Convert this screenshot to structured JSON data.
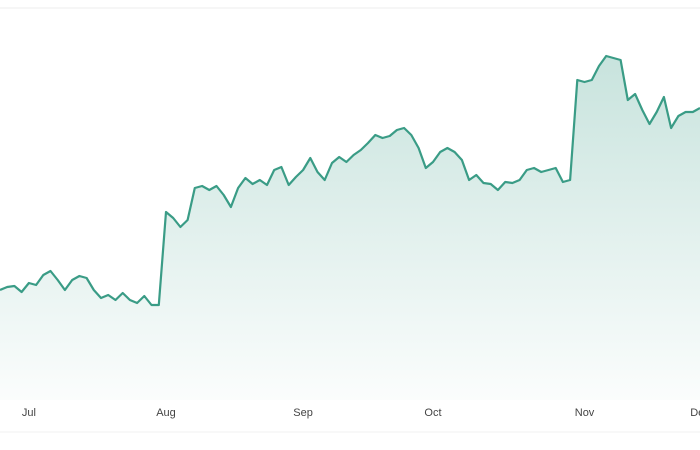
{
  "chart_data": {
    "type": "area",
    "categories": [
      null,
      null,
      null,
      null,
      "Jul",
      null,
      null,
      null,
      null,
      null,
      null,
      null,
      null,
      null,
      null,
      null,
      null,
      null,
      null,
      null,
      null,
      null,
      null,
      "Aug",
      null,
      null,
      null,
      null,
      null,
      null,
      null,
      null,
      null,
      null,
      null,
      null,
      null,
      null,
      null,
      null,
      null,
      null,
      "Sep",
      null,
      null,
      null,
      null,
      null,
      null,
      null,
      null,
      null,
      null,
      null,
      null,
      null,
      null,
      null,
      null,
      null,
      "Oct",
      null,
      null,
      null,
      null,
      null,
      null,
      null,
      null,
      null,
      null,
      null,
      null,
      null,
      null,
      null,
      null,
      null,
      null,
      null,
      null,
      "Nov",
      null,
      null,
      null,
      null,
      null,
      null,
      null,
      null,
      null,
      null,
      null,
      null,
      null,
      null,
      null,
      "Dec"
    ],
    "values": [
      110,
      113,
      114,
      108,
      117,
      115,
      125,
      129,
      120,
      110,
      120,
      124,
      122,
      110,
      102,
      105,
      100,
      107,
      100,
      97,
      104,
      95,
      95,
      188,
      182,
      173,
      180,
      212,
      214,
      210,
      214,
      205,
      193,
      212,
      222,
      216,
      220,
      215,
      230,
      233,
      215,
      223,
      230,
      242,
      228,
      220,
      237,
      243,
      238,
      245,
      250,
      257,
      265,
      262,
      264,
      270,
      272,
      265,
      252,
      232,
      238,
      248,
      252,
      248,
      240,
      220,
      225,
      217,
      216,
      210,
      218,
      217,
      220,
      230,
      232,
      228,
      230,
      232,
      218,
      220,
      320,
      318,
      320,
      334,
      344,
      342,
      340,
      300,
      306,
      290,
      276,
      288,
      303,
      272,
      284,
      288,
      288,
      292
    ],
    "color": "#3a9c86",
    "ylim": [
      0,
      400
    ]
  }
}
